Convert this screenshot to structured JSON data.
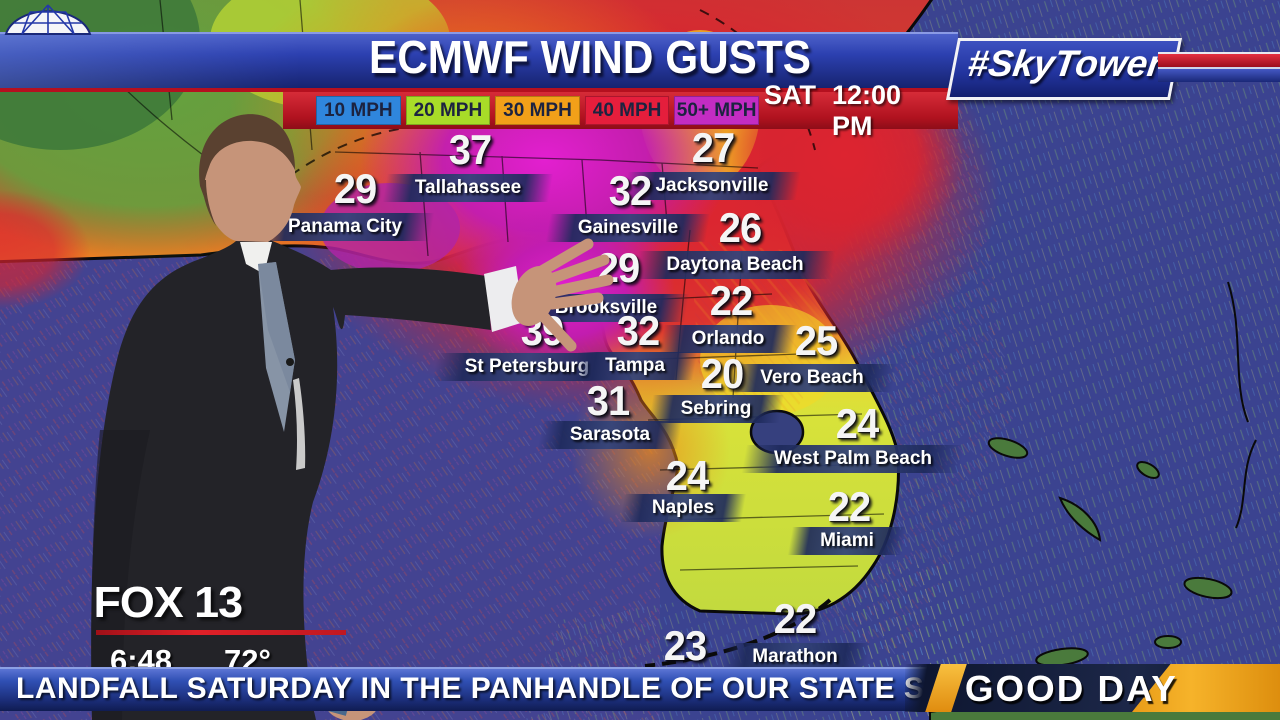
{
  "header": {
    "title": "ECMWF WIND GUSTS",
    "brand": "#SkyTower",
    "brand_icon": "geodesic-dome-icon",
    "day": "SAT",
    "time": "12:00 PM",
    "legend": [
      {
        "label": "10 MPH",
        "color": "#2f86dd"
      },
      {
        "label": "20 MPH",
        "color": "#a8dc28"
      },
      {
        "label": "30 MPH",
        "color": "#f2a019"
      },
      {
        "label": "40 MPH",
        "color": "#e51e3c"
      },
      {
        "label": "50+ MPH",
        "color": "#c32cc3"
      }
    ]
  },
  "map": {
    "units": "MPH",
    "locations": [
      {
        "name": "Panama City",
        "gust": 29
      },
      {
        "name": "Tallahassee",
        "gust": 37
      },
      {
        "name": "Jacksonville",
        "gust": 27
      },
      {
        "name": "Gainesville",
        "gust": 32
      },
      {
        "name": "Daytona Beach",
        "gust": 26
      },
      {
        "name": "Brooksville",
        "gust": 29
      },
      {
        "name": "St Petersburg",
        "gust": 39
      },
      {
        "name": "Tampa",
        "gust": 32
      },
      {
        "name": "Orlando",
        "gust": 22
      },
      {
        "name": "Vero Beach",
        "gust": 25
      },
      {
        "name": "Sebring",
        "gust": 20
      },
      {
        "name": "Sarasota",
        "gust": 31
      },
      {
        "name": "West Palm Beach",
        "gust": 24
      },
      {
        "name": "Naples",
        "gust": 24
      },
      {
        "name": "Miami",
        "gust": 22
      },
      {
        "name": "Marathon",
        "gust": 22
      },
      {
        "name": "",
        "gust": 23
      }
    ]
  },
  "station": {
    "logo": "FOX 13",
    "clock": "6:48",
    "temp": "72°"
  },
  "ticker": {
    "text": "LANDFALL SATURDAY IN THE PANHANDLE OF OUR STATE SATURDAY. RAIN A",
    "show": "GOOD DAY"
  }
}
